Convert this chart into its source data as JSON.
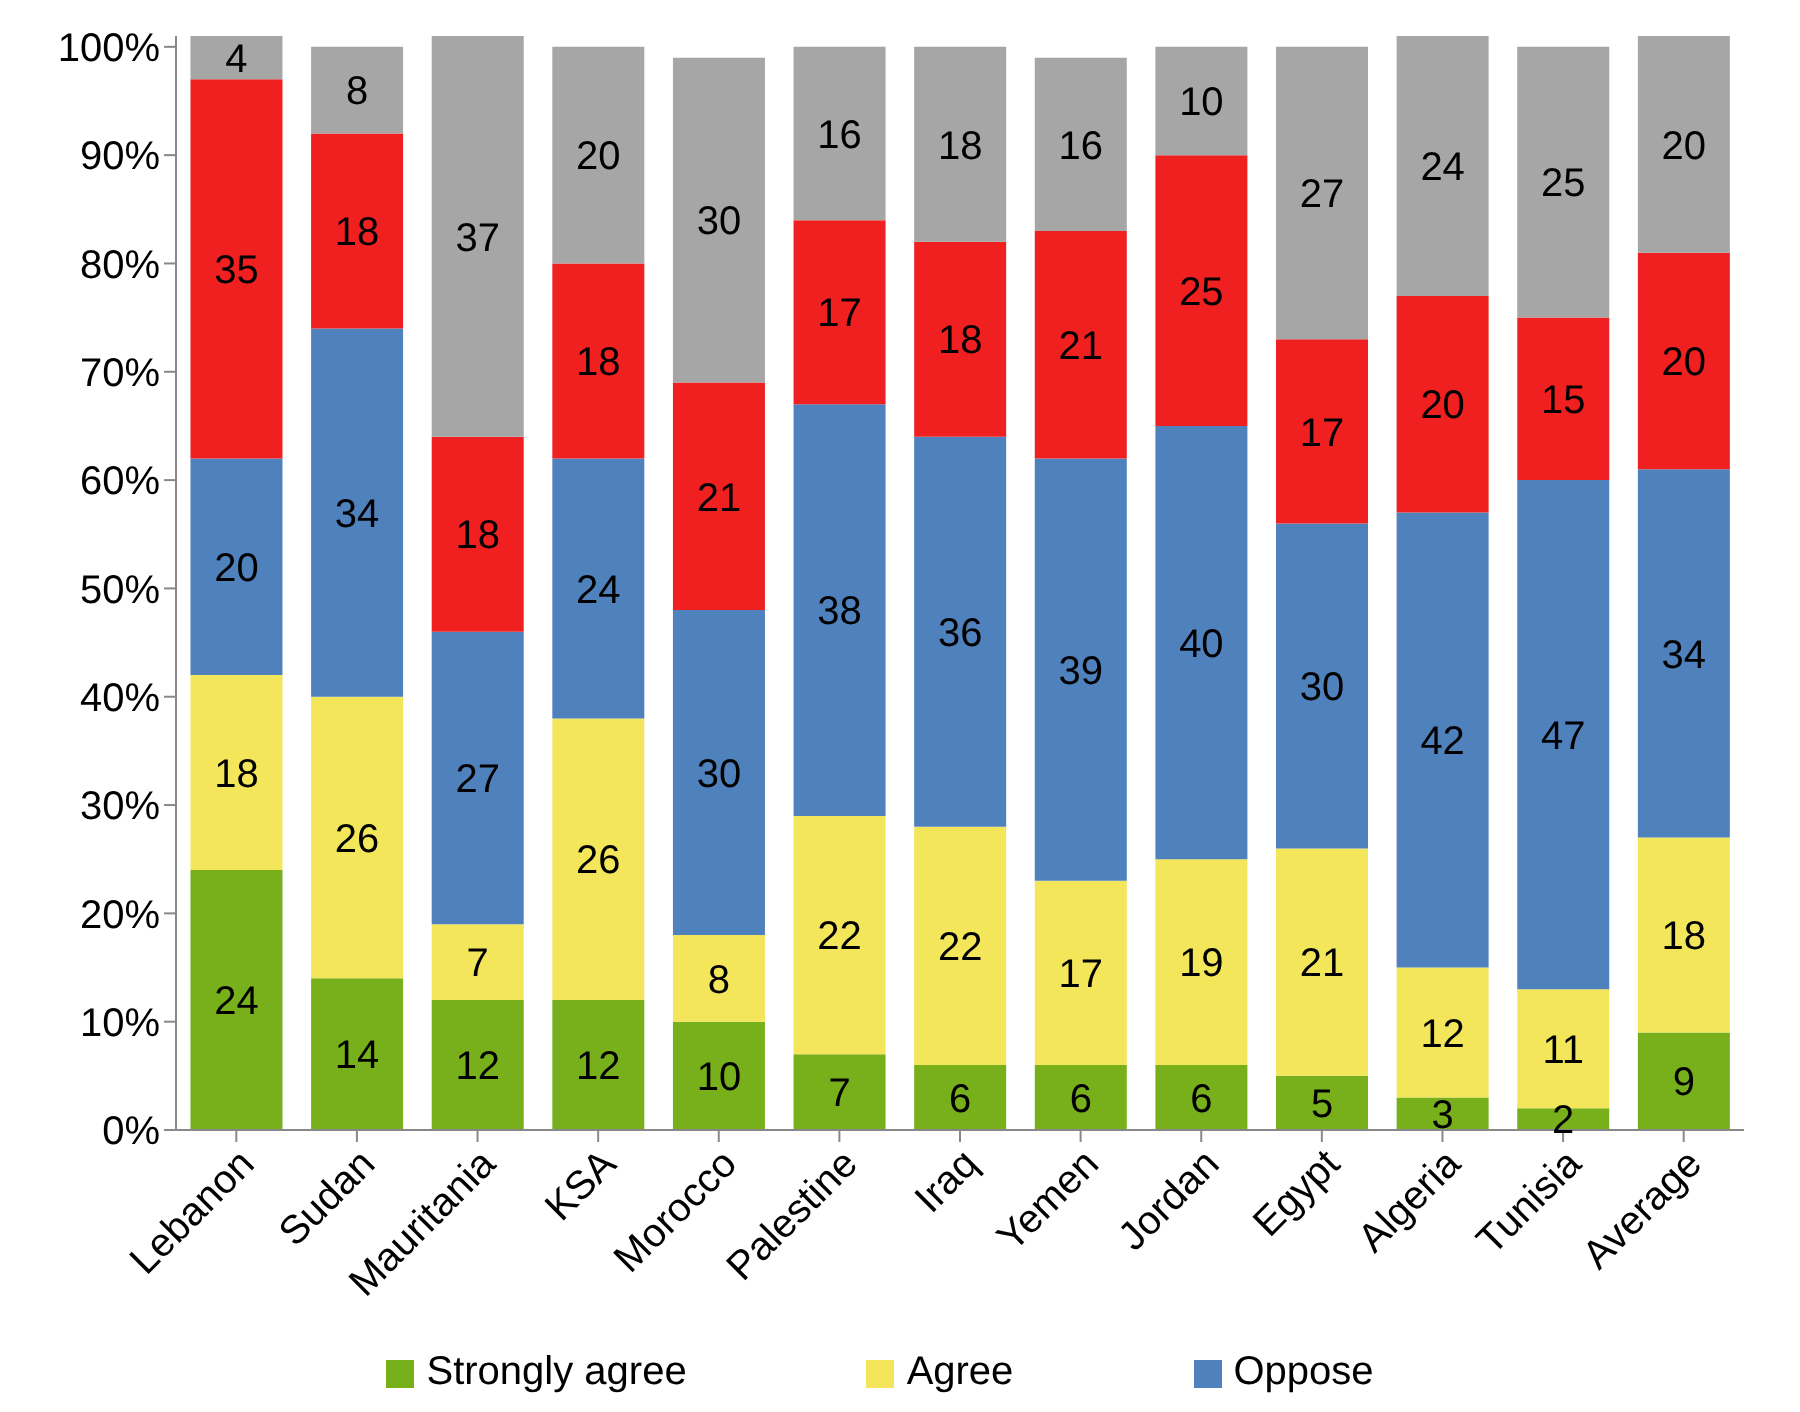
{
  "chart_data": {
    "type": "bar",
    "stacked": true,
    "data_labels": true,
    "grid": false,
    "legend": "bottom",
    "categories": [
      "Lebanon",
      "Sudan",
      "Mauritania",
      "KSA",
      "Morocco",
      "Palestine",
      "Iraq",
      "Yemen",
      "Jordan",
      "Egypt",
      "Algeria",
      "Tunisia",
      "Average"
    ],
    "ylim": [
      0,
      101
    ],
    "yticks": [
      {
        "value": 0,
        "label": "0%"
      },
      {
        "value": 10,
        "label": "10%"
      },
      {
        "value": 20,
        "label": "20%"
      },
      {
        "value": 30,
        "label": "30%"
      },
      {
        "value": 40,
        "label": "40%"
      },
      {
        "value": 50,
        "label": "50%"
      },
      {
        "value": 60,
        "label": "60%"
      },
      {
        "value": 70,
        "label": "70%"
      },
      {
        "value": 80,
        "label": "80%"
      },
      {
        "value": 90,
        "label": "90%"
      },
      {
        "value": 100,
        "label": "100%"
      }
    ],
    "series": [
      {
        "name": "Strongly agree",
        "color": "#78b01c",
        "values": [
          24,
          14,
          12,
          12,
          10,
          7,
          6,
          6,
          6,
          5,
          3,
          2,
          9
        ]
      },
      {
        "name": "Agree",
        "color": "#f3e65a",
        "values": [
          18,
          26,
          7,
          26,
          8,
          22,
          22,
          17,
          19,
          21,
          12,
          11,
          18
        ]
      },
      {
        "name": "Oppose",
        "color": "#4f81bd",
        "values": [
          20,
          34,
          27,
          24,
          30,
          38,
          36,
          39,
          40,
          30,
          42,
          47,
          34
        ]
      },
      {
        "color": "#f02020",
        "values": [
          35,
          18,
          18,
          18,
          21,
          17,
          18,
          21,
          25,
          17,
          20,
          15,
          20
        ]
      },
      {
        "color": "#a6a6a6",
        "values": [
          4,
          8,
          37,
          20,
          30,
          16,
          18,
          16,
          10,
          27,
          24,
          25,
          20
        ]
      }
    ]
  }
}
